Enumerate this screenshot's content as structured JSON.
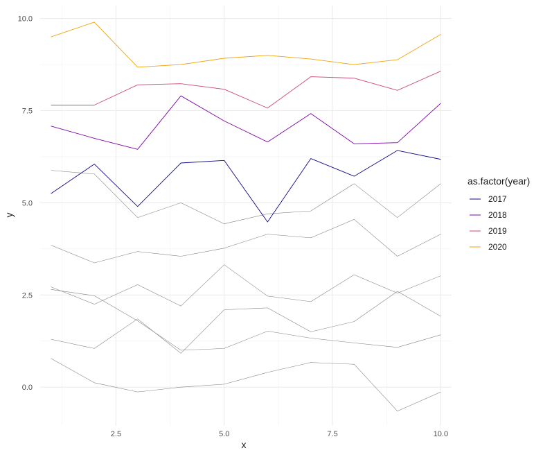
{
  "chart_data": {
    "type": "line",
    "xlabel": "x",
    "ylabel": "y",
    "xlim": [
      0.75,
      10.25
    ],
    "ylim": [
      -1.05,
      10.35
    ],
    "x_ticks": [
      2.5,
      5.0,
      7.5,
      10.0
    ],
    "x_tick_labels": [
      "2.5",
      "5.0",
      "7.5",
      "10.0"
    ],
    "y_ticks": [
      0.0,
      2.5,
      5.0,
      7.5,
      10.0
    ],
    "y_tick_labels": [
      "0.0",
      "2.5",
      "5.0",
      "7.5",
      "10.0"
    ],
    "grid": true,
    "legend": {
      "title": "as.factor(year)",
      "position": "right",
      "entries": [
        {
          "label": "2017",
          "color": "#0d0887"
        },
        {
          "label": "2018",
          "color": "#7e03a8"
        },
        {
          "label": "2019",
          "color": "#cc4778"
        },
        {
          "label": "2020",
          "color": "#f0a30a"
        }
      ]
    },
    "x": [
      1,
      2,
      3,
      4,
      5,
      6,
      7,
      8,
      9,
      10
    ],
    "series": [
      {
        "name": "2017",
        "color": "#0d0887",
        "values": [
          5.25,
          6.05,
          4.9,
          6.08,
          6.15,
          4.48,
          6.2,
          5.72,
          6.42,
          6.18
        ]
      },
      {
        "name": "2018",
        "color": "#7e03a8",
        "values": [
          7.08,
          6.75,
          6.45,
          7.9,
          7.22,
          6.65,
          7.42,
          6.6,
          6.63,
          7.7
        ]
      },
      {
        "name": "2019",
        "color": "#cc4778",
        "values": [
          7.65,
          7.65,
          8.2,
          8.23,
          8.08,
          7.57,
          8.42,
          8.38,
          8.05,
          8.57
        ]
      },
      {
        "name": "2020",
        "color": "#f0a30a",
        "values": [
          9.5,
          9.9,
          8.68,
          8.75,
          8.92,
          9.0,
          8.9,
          8.75,
          8.88,
          9.57
        ]
      },
      {
        "color": "#7f7f7f",
        "values": [
          5.88,
          5.78,
          4.6,
          5.0,
          4.43,
          4.7,
          4.78,
          5.52,
          4.6,
          5.52
        ]
      },
      {
        "color": "#7f7f7f",
        "values": [
          3.85,
          3.37,
          3.68,
          3.55,
          3.77,
          4.15,
          4.05,
          4.55,
          3.55,
          4.15
        ]
      },
      {
        "color": "#7f7f7f",
        "values": [
          2.72,
          2.25,
          2.78,
          2.2,
          3.32,
          2.47,
          2.32,
          3.05,
          2.55,
          3.02
        ]
      },
      {
        "color": "#7f7f7f",
        "values": [
          2.65,
          2.48,
          1.8,
          1.0,
          1.05,
          1.52,
          1.33,
          1.2,
          1.08,
          1.42
        ]
      },
      {
        "color": "#7f7f7f",
        "values": [
          1.3,
          1.05,
          1.85,
          0.92,
          2.1,
          2.15,
          1.5,
          1.78,
          2.6,
          1.92
        ]
      },
      {
        "color": "#7f7f7f",
        "values": [
          0.78,
          0.12,
          -0.13,
          0.0,
          0.08,
          0.4,
          0.67,
          0.62,
          -0.65,
          -0.13
        ]
      }
    ]
  }
}
